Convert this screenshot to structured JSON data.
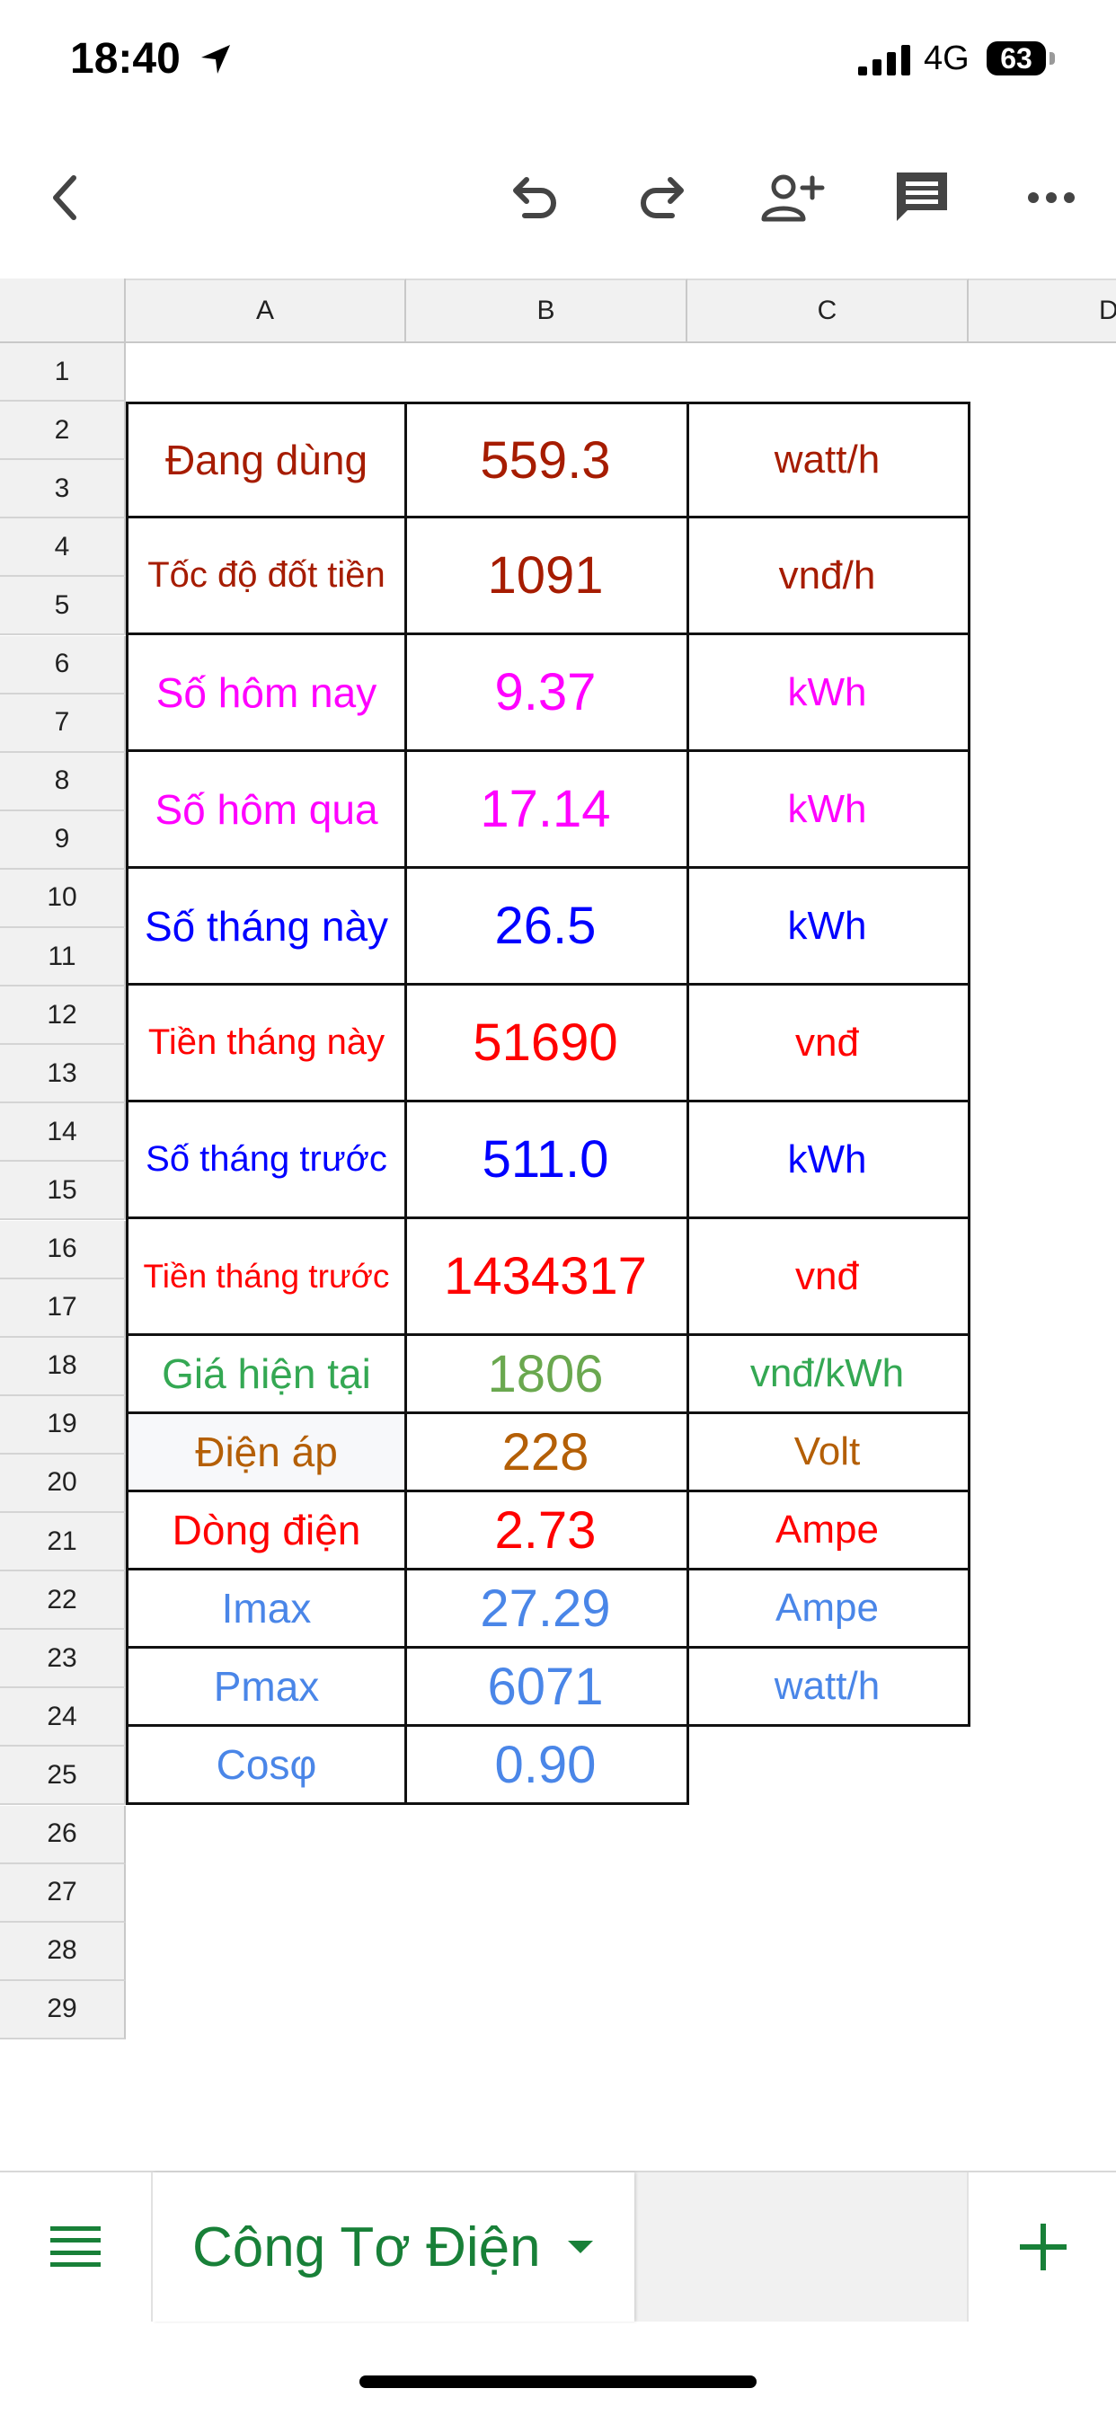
{
  "status": {
    "time": "18:40",
    "network": "4G",
    "battery": "63"
  },
  "toolbar": {
    "icons": [
      "back-icon",
      "undo-icon",
      "redo-icon",
      "add-person-icon",
      "comment-icon",
      "more-icon"
    ]
  },
  "sheet": {
    "columns": [
      "A",
      "B",
      "C",
      "D"
    ],
    "row_numbers": [
      "1",
      "2",
      "3",
      "4",
      "5",
      "6",
      "7",
      "8",
      "9",
      "10",
      "11",
      "12",
      "13",
      "14",
      "15",
      "16",
      "17",
      "18",
      "19",
      "20",
      "21",
      "22",
      "23",
      "24",
      "25",
      "26",
      "27",
      "28",
      "29"
    ],
    "rows": [
      {
        "label": "Đang dùng",
        "value": "559.3",
        "unit": "watt/h",
        "color": "#a61c00"
      },
      {
        "label": "Tốc độ đốt tiền",
        "value": "1091",
        "unit": "vnđ/h",
        "color": "#a61c00"
      },
      {
        "label": "Số hôm nay",
        "value": "9.37",
        "unit": "kWh",
        "color": "#ff00ff"
      },
      {
        "label": "Số hôm qua",
        "value": "17.14",
        "unit": "kWh",
        "color": "#ff00ff"
      },
      {
        "label": "Số tháng này",
        "value": "26.5",
        "unit": "kWh",
        "color": "#0000ff"
      },
      {
        "label": "Tiền tháng này",
        "value": "51690",
        "unit": "vnđ",
        "color": "#ff0000"
      },
      {
        "label": "Số tháng trước",
        "value": "511.0",
        "unit": "kWh",
        "color": "#0000ff"
      },
      {
        "label": "Tiền tháng trước",
        "value": "1434317",
        "unit": "vnđ",
        "color": "#ff0000"
      },
      {
        "label": "Giá hiện tại",
        "value": "1806",
        "unit": "vnđ/kWh",
        "color": "#34a853",
        "value_color": "#6aa84f"
      },
      {
        "label": "Điện áp",
        "value": "228",
        "unit": "Volt",
        "color": "#b45f06"
      },
      {
        "label": "Dòng điện",
        "value": "2.73",
        "unit": "Ampe",
        "color": "#ff0000"
      },
      {
        "label": "Imax",
        "value": "27.29",
        "unit": "Ampe",
        "color": "#4a86e8"
      },
      {
        "label": "Pmax",
        "value": "6071",
        "unit": "watt/h",
        "color": "#4a86e8"
      },
      {
        "label": "Cosφ",
        "value": "0.90",
        "unit": "",
        "color": "#4a86e8"
      }
    ]
  },
  "bottom": {
    "sheet_tab": "Công Tơ Điện",
    "add_label": "+"
  }
}
